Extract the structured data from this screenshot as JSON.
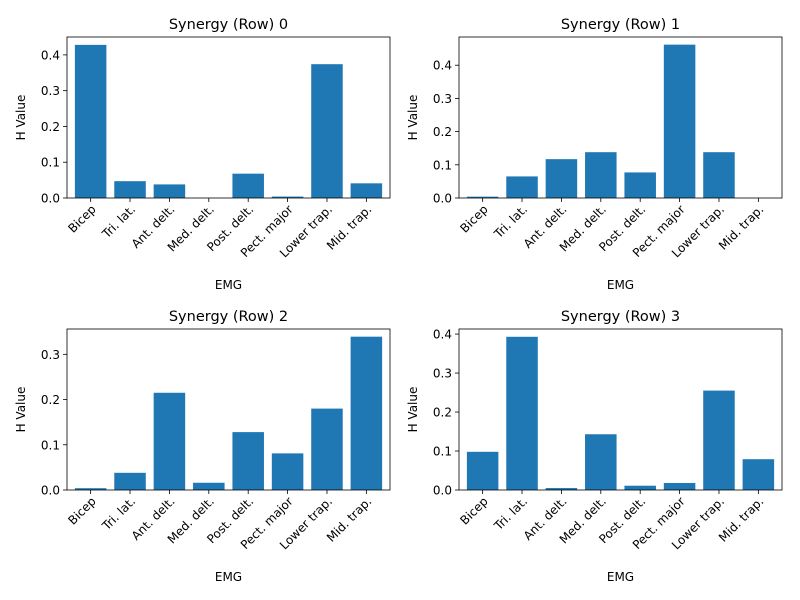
{
  "chart_data": [
    {
      "type": "bar",
      "title": "Synergy (Row) 0",
      "xlabel": "EMG",
      "ylabel": "H Value",
      "categories": [
        "Bicep",
        "Tri. lat.",
        "Ant. delt.",
        "Med. delt.",
        "Post. delt.",
        "Pect. major",
        "Lower trap.",
        "Mid. trap."
      ],
      "values": [
        0.428,
        0.047,
        0.038,
        0.0,
        0.068,
        0.004,
        0.374,
        0.041
      ],
      "ylim": [
        0,
        0.45
      ],
      "yticks": [
        0.0,
        0.1,
        0.2,
        0.3,
        0.4
      ],
      "ytick_labels": [
        "0.0",
        "0.1",
        "0.2",
        "0.3",
        "0.4"
      ],
      "color": "#1f77b4",
      "grid": false
    },
    {
      "type": "bar",
      "title": "Synergy (Row) 1",
      "xlabel": "EMG",
      "ylabel": "H Value",
      "categories": [
        "Bicep",
        "Tri. lat.",
        "Ant. delt.",
        "Med. delt.",
        "Post. delt.",
        "Pect. major",
        "Lower trap.",
        "Mid. trap."
      ],
      "values": [
        0.004,
        0.065,
        0.117,
        0.138,
        0.077,
        0.462,
        0.138,
        0.0
      ],
      "ylim": [
        0,
        0.485
      ],
      "yticks": [
        0.0,
        0.1,
        0.2,
        0.3,
        0.4
      ],
      "ytick_labels": [
        "0.0",
        "0.1",
        "0.2",
        "0.3",
        "0.4"
      ],
      "color": "#1f77b4",
      "grid": false
    },
    {
      "type": "bar",
      "title": "Synergy (Row) 2",
      "xlabel": "EMG",
      "ylabel": "H Value",
      "categories": [
        "Bicep",
        "Tri. lat.",
        "Ant. delt.",
        "Med. delt.",
        "Post. delt.",
        "Pect. major",
        "Lower trap.",
        "Mid. trap."
      ],
      "values": [
        0.004,
        0.038,
        0.215,
        0.016,
        0.128,
        0.081,
        0.18,
        0.339
      ],
      "ylim": [
        0,
        0.356
      ],
      "yticks": [
        0.0,
        0.1,
        0.2,
        0.3
      ],
      "ytick_labels": [
        "0.0",
        "0.1",
        "0.2",
        "0.3"
      ],
      "color": "#1f77b4",
      "grid": false
    },
    {
      "type": "bar",
      "title": "Synergy (Row) 3",
      "xlabel": "EMG",
      "ylabel": "H Value",
      "categories": [
        "Bicep",
        "Tri. lat.",
        "Ant. delt.",
        "Med. delt.",
        "Post. delt.",
        "Pect. major",
        "Lower trap.",
        "Mid. trap."
      ],
      "values": [
        0.098,
        0.393,
        0.005,
        0.143,
        0.011,
        0.018,
        0.255,
        0.079
      ],
      "ylim": [
        0,
        0.413
      ],
      "yticks": [
        0.0,
        0.1,
        0.2,
        0.3,
        0.4
      ],
      "ytick_labels": [
        "0.0",
        "0.1",
        "0.2",
        "0.3",
        "0.4"
      ],
      "color": "#1f77b4",
      "grid": false
    }
  ]
}
